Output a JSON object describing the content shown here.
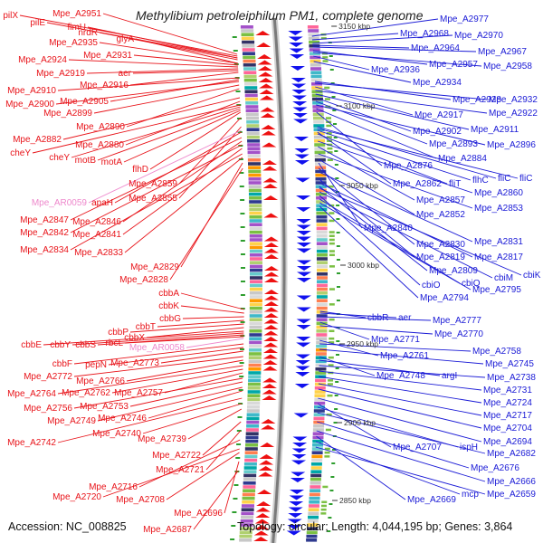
{
  "title": "Methylibium petroleiphilum PM1, complete genome",
  "footer": {
    "accession": "Accession: NC_008825",
    "meta": "Topology: circular; Length: 4,044,195 bp; Genes: 3,864"
  },
  "colors": {
    "left_label": "#e8141a",
    "right_label": "#1a1ad6",
    "pink_label": "#ee88cc",
    "backbone": "#7a7a7a"
  },
  "kbp_ticks": [
    "3150 kbp",
    "3100 kbp",
    "3050 kbp",
    "3000 kbp",
    "2950 kbp",
    "2900 kbp",
    "2850 kbp"
  ],
  "left_labels": [
    {
      "text": "Mpe_A2951"
    },
    {
      "text": "pilX"
    },
    {
      "text": "pilE"
    },
    {
      "text": "fimU"
    },
    {
      "text": "nrdR"
    },
    {
      "text": "Mpe_A2935"
    },
    {
      "text": "glyA"
    },
    {
      "text": "Mpe_A2931"
    },
    {
      "text": "Mpe_A2924"
    },
    {
      "text": "Mpe_A2919"
    },
    {
      "text": "aer"
    },
    {
      "text": "Mpe_A2916"
    },
    {
      "text": "Mpe_A2910"
    },
    {
      "text": "Mpe_A2905"
    },
    {
      "text": "Mpe_A2900"
    },
    {
      "text": "Mpe_A2899"
    },
    {
      "text": "Mpe_A2890"
    },
    {
      "text": "Mpe_A2882"
    },
    {
      "text": "Mpe_A2880"
    },
    {
      "text": "cheY"
    },
    {
      "text": "cheY"
    },
    {
      "text": "motB"
    },
    {
      "text": "motA"
    },
    {
      "text": "flhD"
    },
    {
      "text": "Mpe_A2859"
    },
    {
      "text": "Mpe_A2855"
    },
    {
      "text": "Mpe_AR0059"
    },
    {
      "text": "apaH"
    },
    {
      "text": "Mpe_A2847"
    },
    {
      "text": "Mpe_A2846"
    },
    {
      "text": "Mpe_A2842"
    },
    {
      "text": "Mpe_A2841"
    },
    {
      "text": "Mpe_A2834"
    },
    {
      "text": "Mpe_A2833"
    },
    {
      "text": "Mpe_A2829"
    },
    {
      "text": "Mpe_A2828"
    },
    {
      "text": "cbbA"
    },
    {
      "text": "cbbK"
    },
    {
      "text": "cbbG"
    },
    {
      "text": "cbbT"
    },
    {
      "text": "cbbP"
    },
    {
      "text": "cbbX"
    },
    {
      "text": "cbbE"
    },
    {
      "text": "cbbY"
    },
    {
      "text": "cbbS"
    },
    {
      "text": "rbcL"
    },
    {
      "text": "Mpe_AR0058"
    },
    {
      "text": "cbbF"
    },
    {
      "text": "pepN"
    },
    {
      "text": "Mpe_A2773"
    },
    {
      "text": "Mpe_A2772"
    },
    {
      "text": "Mpe_A2766"
    },
    {
      "text": "Mpe_A2764"
    },
    {
      "text": "Mpe_A2762"
    },
    {
      "text": "Mpe_A2757"
    },
    {
      "text": "Mpe_A2756"
    },
    {
      "text": "Mpe_A2753"
    },
    {
      "text": "Mpe_A2749"
    },
    {
      "text": "Mpe_A2746"
    },
    {
      "text": "Mpe_A2742"
    },
    {
      "text": "Mpe_A2740"
    },
    {
      "text": "Mpe_A2739"
    },
    {
      "text": "Mpe_A2722"
    },
    {
      "text": "Mpe_A2721"
    },
    {
      "text": "Mpe_A2716"
    },
    {
      "text": "Mpe_A2720"
    },
    {
      "text": "Mpe_A2708"
    },
    {
      "text": "Mpe_A2696"
    },
    {
      "text": "Mpe_A2687"
    }
  ],
  "right_labels": [
    {
      "text": "Mpe_A2977"
    },
    {
      "text": "Mpe_A2968"
    },
    {
      "text": "Mpe_A2970"
    },
    {
      "text": "Mpe_A2964"
    },
    {
      "text": "Mpe_A2967"
    },
    {
      "text": "Mpe_A2957"
    },
    {
      "text": "Mpe_A2958"
    },
    {
      "text": "Mpe_A2936"
    },
    {
      "text": "Mpe_A2934"
    },
    {
      "text": "Mpe_A2928"
    },
    {
      "text": "Mpe_A2932"
    },
    {
      "text": "Mpe_A2917"
    },
    {
      "text": "Mpe_A2922"
    },
    {
      "text": "Mpe_A2911"
    },
    {
      "text": "Mpe_A2902"
    },
    {
      "text": "Mpe_A2893"
    },
    {
      "text": "Mpe_A2896"
    },
    {
      "text": "Mpe_A2884"
    },
    {
      "text": "Mpe_A2876"
    },
    {
      "text": "fliC"
    },
    {
      "text": "fliC"
    },
    {
      "text": "flhC"
    },
    {
      "text": "Mpe_A2862"
    },
    {
      "text": "fliT"
    },
    {
      "text": "Mpe_A2860"
    },
    {
      "text": "Mpe_A2857"
    },
    {
      "text": "Mpe_A2853"
    },
    {
      "text": "Mpe_A2852"
    },
    {
      "text": "Mpe_A2840"
    },
    {
      "text": "Mpe_A2830"
    },
    {
      "text": "Mpe_A2831"
    },
    {
      "text": "Mpe_A2819"
    },
    {
      "text": "Mpe_A2817"
    },
    {
      "text": "Mpe_A2809"
    },
    {
      "text": "cbiK"
    },
    {
      "text": "cbiM"
    },
    {
      "text": "cbiO"
    },
    {
      "text": "cbiQ"
    },
    {
      "text": "Mpe_A2795"
    },
    {
      "text": "Mpe_A2794"
    },
    {
      "text": "cbbR"
    },
    {
      "text": "aer"
    },
    {
      "text": "Mpe_A2777"
    },
    {
      "text": "Mpe_A2771"
    },
    {
      "text": "Mpe_A2770"
    },
    {
      "text": "Mpe_A2761"
    },
    {
      "text": "Mpe_A2758"
    },
    {
      "text": "Mpe_A2745"
    },
    {
      "text": "Mpe_A2748"
    },
    {
      "text": "argI"
    },
    {
      "text": "Mpe_A2738"
    },
    {
      "text": "Mpe_A2731"
    },
    {
      "text": "Mpe_A2724"
    },
    {
      "text": "Mpe_A2717"
    },
    {
      "text": "Mpe_A2704"
    },
    {
      "text": "Mpe_A2694"
    },
    {
      "text": "Mpe_A2707"
    },
    {
      "text": "ispH"
    },
    {
      "text": "Mpe_A2682"
    },
    {
      "text": "Mpe_A2676"
    },
    {
      "text": "Mpe_A2666"
    },
    {
      "text": "Mpe_A2669"
    },
    {
      "text": "mcp"
    },
    {
      "text": "Mpe_A2659"
    }
  ]
}
